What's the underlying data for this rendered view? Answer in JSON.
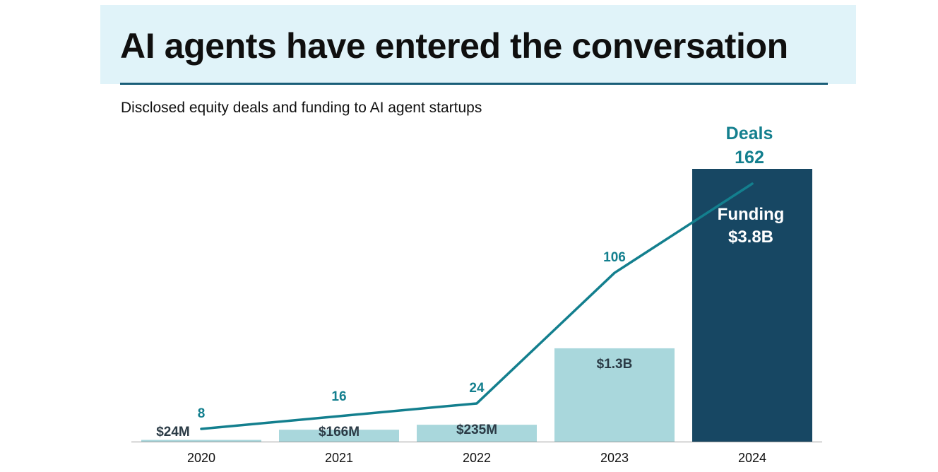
{
  "header": {
    "title": "AI agents have entered the conversation",
    "subtitle": "Disclosed equity deals and funding to AI agent startups"
  },
  "colors": {
    "title_band": "#e0f3f9",
    "rule": "#1a5e78",
    "bar_light": "#a9d7dc",
    "bar_dark": "#174763",
    "line": "#137f8e",
    "funding_label": "#2b3b46",
    "axis": "#9a9a9a"
  },
  "chart_data": {
    "type": "bar",
    "categories": [
      "2020",
      "2021",
      "2022",
      "2023",
      "2024"
    ],
    "series": [
      {
        "name": "Funding",
        "kind": "bar",
        "unit": "USD millions",
        "values": [
          24,
          166,
          235,
          1300,
          3800
        ],
        "labels": [
          "$24M",
          "$166M",
          "$235M",
          "$1.3B",
          "$3.8B"
        ],
        "highlight_index": 4,
        "ylim": [
          0,
          3900
        ]
      },
      {
        "name": "Deals",
        "kind": "line",
        "unit": "count",
        "values": [
          8,
          16,
          24,
          106,
          162
        ],
        "labels": [
          "8",
          "16",
          "24",
          "106",
          "162"
        ],
        "ylim": [
          0,
          185
        ]
      }
    ],
    "series_labels": {
      "deals": "Deals",
      "deals_value": "162",
      "funding": "Funding",
      "funding_value": "$3.8B"
    },
    "xlabel": "",
    "ylabel": "",
    "grid": false
  }
}
